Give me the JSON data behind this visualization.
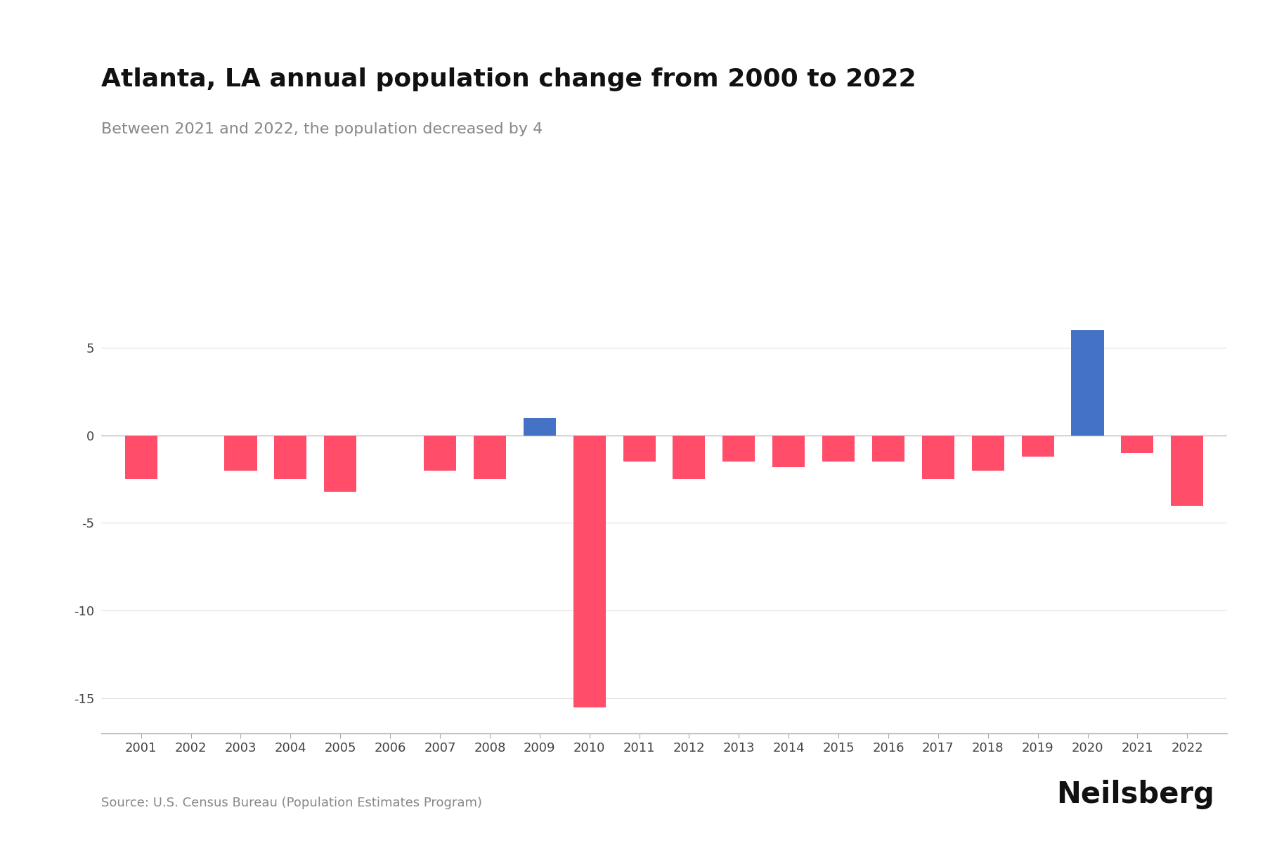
{
  "title": "Atlanta, LA annual population change from 2000 to 2022",
  "subtitle": "Between 2021 and 2022, the population decreased by 4",
  "source": "Source: U.S. Census Bureau (Population Estimates Program)",
  "branding": "Neilsberg",
  "years": [
    2001,
    2002,
    2003,
    2004,
    2005,
    2006,
    2007,
    2008,
    2009,
    2010,
    2011,
    2012,
    2013,
    2014,
    2015,
    2016,
    2017,
    2018,
    2019,
    2020,
    2021,
    2022
  ],
  "values": [
    -2.5,
    0,
    -2.0,
    -2.5,
    -3.2,
    0,
    -2.0,
    -2.5,
    1.0,
    -15.5,
    -1.5,
    -2.5,
    -1.5,
    -1.8,
    -1.5,
    -1.5,
    -2.5,
    -2.0,
    -1.2,
    6.0,
    -1.0,
    -4.0
  ],
  "color_positive": "#4472C4",
  "color_negative": "#FF4D6A",
  "background_color": "#FFFFFF",
  "ylim": [
    -17,
    8
  ],
  "yticks": [
    -15,
    -10,
    -5,
    0,
    5
  ],
  "title_fontsize": 26,
  "subtitle_fontsize": 16,
  "source_fontsize": 13,
  "branding_fontsize": 30,
  "axis_label_fontsize": 13,
  "grid_color": "#E0E0E0",
  "tick_color": "#AAAAAA",
  "text_color": "#111111",
  "subtitle_color": "#888888"
}
